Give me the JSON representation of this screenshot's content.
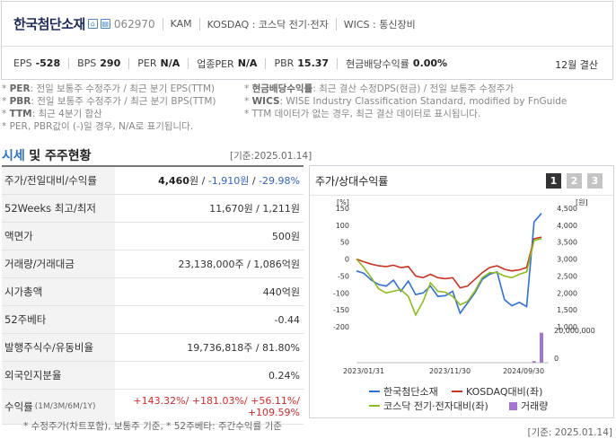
{
  "header": {
    "name": "한국첨단소재",
    "code": "062970",
    "market_tag": "KAM",
    "exchange": "KOSDAQ : 코스닥 전기·전자",
    "wics": "WICS : 통신장비",
    "settlement": "12월 결산",
    "metrics": [
      {
        "label": "EPS",
        "value": "-528"
      },
      {
        "label": "BPS",
        "value": "290"
      },
      {
        "label": "PER",
        "value": "N/A"
      },
      {
        "label": "업종PER",
        "value": "N/A"
      },
      {
        "label": "PBR",
        "value": "15.37"
      },
      {
        "label": "현금배당수익률",
        "value": "0.00%"
      }
    ]
  },
  "notes": {
    "per_label": "PER",
    "per_text": ": 전일 보통주 수정주가 / 최근 분기 EPS(TTM)",
    "pbr_label": "PBR",
    "pbr_text": ": 전일 보통주 수정주가 / 최근 분기 BPS(TTM)",
    "ttm_label": "TTM",
    "ttm_text": ": 최근 4분기 합산",
    "per_na": "PER, PBR값이 (-)일 경우, N/A로 표기됩니다.",
    "div_label": "현금배당수익률",
    "div_text": ": 최근 결산 수정DPS(현금) / 전일 보통주 수정주가",
    "wics_label": "WICS",
    "wics_text": ": WISE Industry Classification Standard, modified by FnGuide",
    "ttm_none": "TTM 데이터가 없는 경우, 최근 결산 데이터로 표시됩니다."
  },
  "section": {
    "title_a": "시세",
    "title_b": "및 주주현황",
    "base_date": "[기준:2025.01.14]"
  },
  "table": {
    "price_label": "주가/전일대비/수익률",
    "price_value": "4,460",
    "price_unit": "원 /",
    "change_value": "-1,910원",
    "change_pct": "-29.98%",
    "w52_label": "52Weeks 최고/최저",
    "w52_value": "11,670원 / 1,211원",
    "par_label": "액면가",
    "par_value": "500원",
    "vol_label": "거래량/거래대금",
    "vol_value": "23,138,000주 / 1,086억원",
    "cap_label": "시가총액",
    "cap_value": "440억원",
    "beta_label": "52주베타",
    "beta_value": "-0.44",
    "shares_label": "발행주식수/유동비율",
    "shares_value": "19,736,818주 / 81.80%",
    "foreign_label": "외국인지분율",
    "foreign_value": "0.24%",
    "ret_label": "수익률",
    "ret_periods": "(1M/3M/6M/1Y)",
    "ret_values": "+143.32%/ +181.03%/ +56.11%/",
    "ret_last": "+109.59%"
  },
  "footnote_left": "* 수정주가(차트포함), 보통주 기준, * 52주베타: 주간수익률 기준",
  "chart_panel": {
    "title": "주가/상대수익률",
    "pages": [
      "1",
      "2",
      "3"
    ],
    "footnote": "[기준: 2025.01.14]"
  },
  "chart_data": {
    "type": "line",
    "left_axis_unit": "[%]",
    "right_axis_unit": "[원]",
    "left_ticks": [
      "150",
      "100",
      "50",
      "0",
      "-50",
      "-100",
      "-150",
      "-200"
    ],
    "right_ticks": [
      "4,500",
      "4,000",
      "3,500",
      "3,000",
      "2,500",
      "2,000",
      "1,500",
      "1,000"
    ],
    "volume_ticks": [
      "20,000,000",
      "0"
    ],
    "x_ticks": [
      "2023/01/31",
      "2023/11/30",
      "2024/09/30"
    ],
    "ylim_left": [
      -200,
      150
    ],
    "series": [
      {
        "name": "한국첨단소재",
        "color": "#2f6fd6",
        "values": [
          -35,
          -42,
          -62,
          -75,
          -80,
          -62,
          -95,
          -65,
          -105,
          -100,
          -80,
          -110,
          -108,
          -95,
          -160,
          -130,
          -100,
          -60,
          -45,
          -38,
          -120,
          -138,
          -128,
          -140,
          110,
          135
        ]
      },
      {
        "name": "KOSDAQ대비(좌)",
        "color": "#c8321e",
        "values": [
          0,
          -8,
          -15,
          -20,
          -22,
          -18,
          -25,
          -22,
          -50,
          -55,
          -45,
          -55,
          -58,
          -55,
          -85,
          -80,
          -60,
          -40,
          -25,
          -20,
          -30,
          -35,
          -32,
          -25,
          60,
          65
        ]
      },
      {
        "name": "코스닥 전기·전자대비(좌)",
        "color": "#8cbc1e",
        "values": [
          0,
          -25,
          -55,
          -88,
          -100,
          -95,
          -90,
          -110,
          -165,
          -125,
          -70,
          -95,
          -98,
          -110,
          -135,
          -125,
          -95,
          -55,
          -40,
          -40,
          -50,
          -55,
          -45,
          -38,
          55,
          60
        ]
      },
      {
        "name": "거래량",
        "color": "#a475d0",
        "values": [
          0,
          0,
          0,
          0,
          0,
          0,
          0,
          0,
          0,
          0,
          0,
          0,
          0,
          0,
          0,
          0,
          0,
          0,
          0,
          0,
          0,
          0,
          0,
          0,
          1200000,
          23138000
        ]
      }
    ],
    "legend": [
      "한국첨단소재",
      "KOSDAQ대비(좌)",
      "코스닥 전기·전자대비(좌)",
      "거래량"
    ]
  }
}
